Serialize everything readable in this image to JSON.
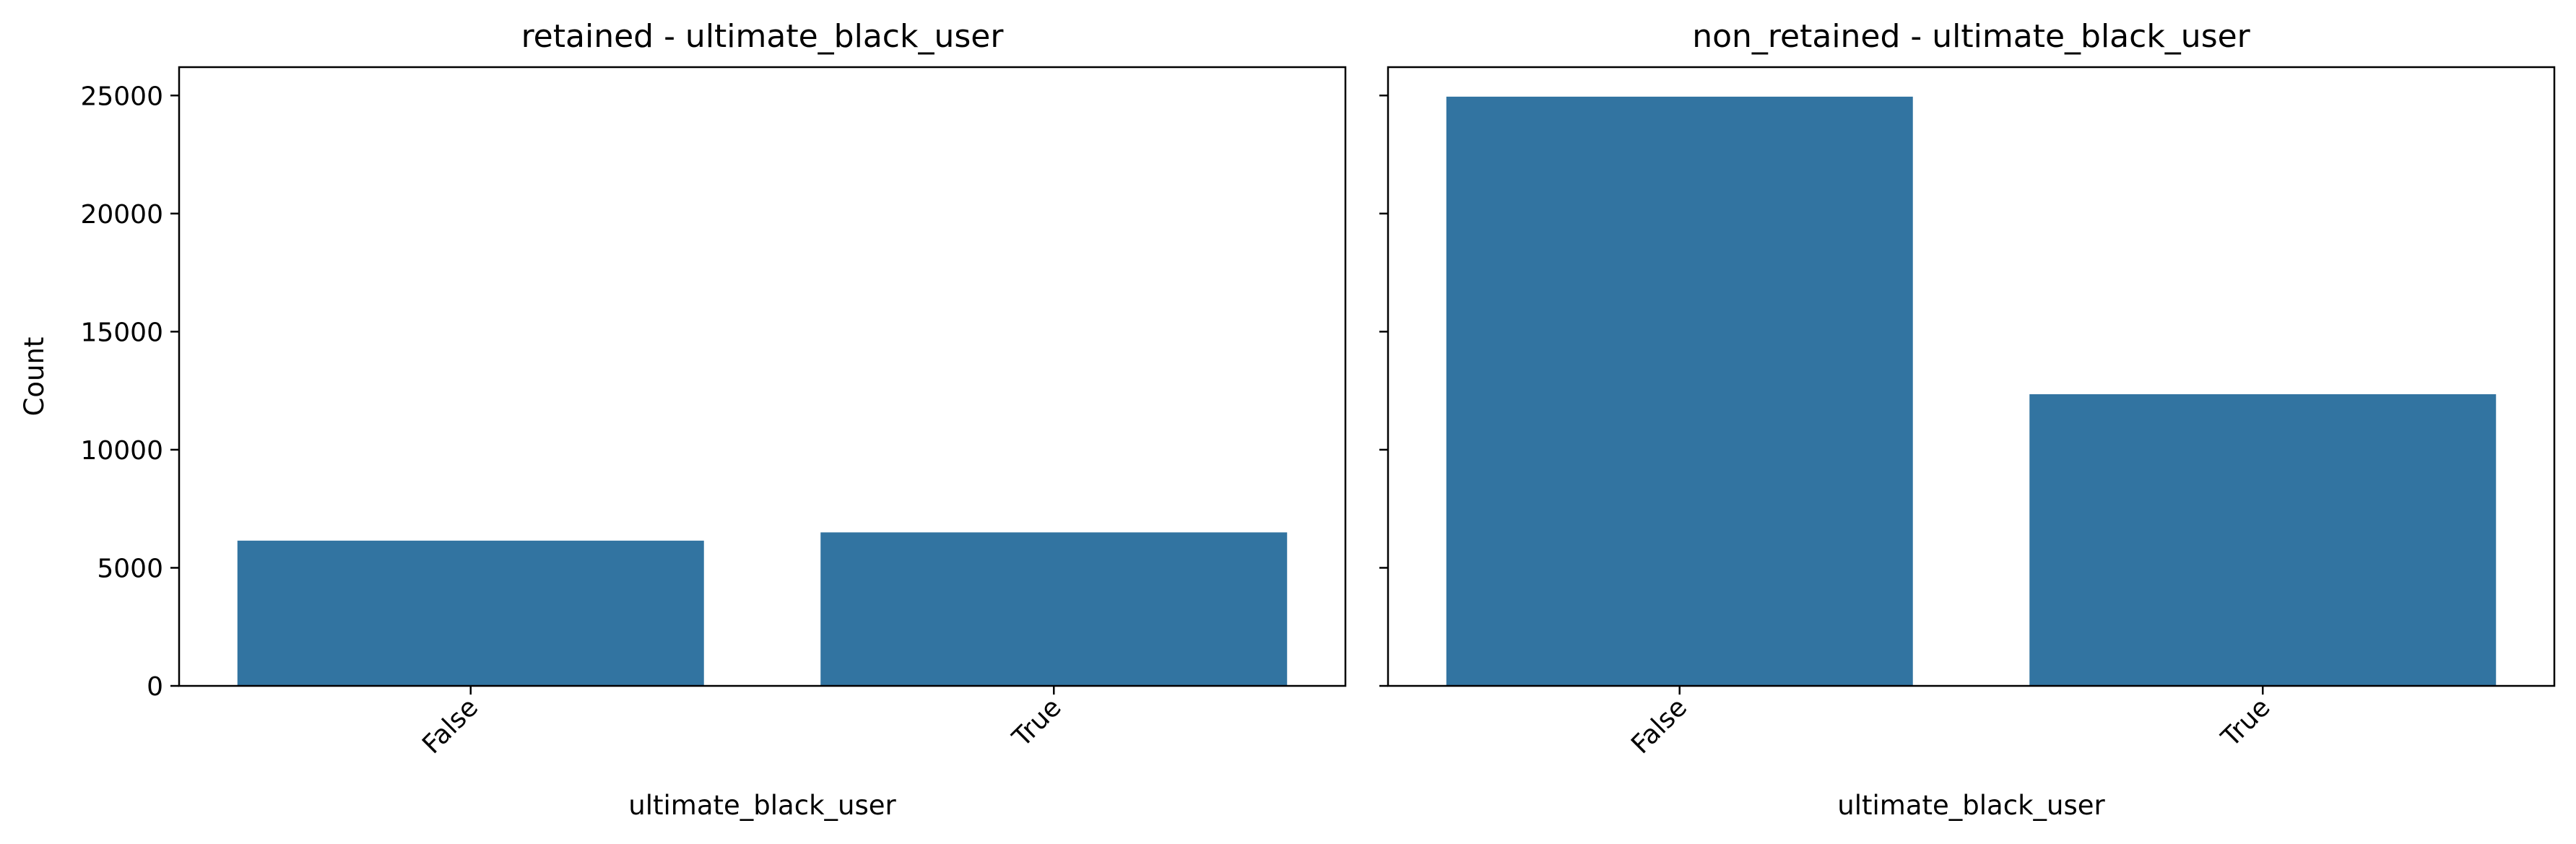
{
  "colors": {
    "bar": "#3274a1",
    "axes": "#000000",
    "background": "#ffffff"
  },
  "chart_data": [
    {
      "type": "bar",
      "title": "retained - ultimate_black_user",
      "xlabel": "ultimate_black_user",
      "ylabel": "Count",
      "categories": [
        "False",
        "True"
      ],
      "values": [
        6150,
        6500
      ],
      "ylim": [
        0,
        26200
      ],
      "yticks": [
        0,
        5000,
        10000,
        15000,
        20000,
        25000
      ],
      "ytick_labels": [
        "0",
        "5000",
        "10000",
        "15000",
        "20000",
        "25000"
      ],
      "grid": false
    },
    {
      "type": "bar",
      "title": "non_retained - ultimate_black_user",
      "xlabel": "ultimate_black_user",
      "ylabel": "",
      "categories": [
        "False",
        "True"
      ],
      "values": [
        24950,
        12350
      ],
      "ylim": [
        0,
        26200
      ],
      "yticks": [
        0,
        5000,
        10000,
        15000,
        20000,
        25000
      ],
      "ytick_labels": [],
      "grid": false
    }
  ]
}
